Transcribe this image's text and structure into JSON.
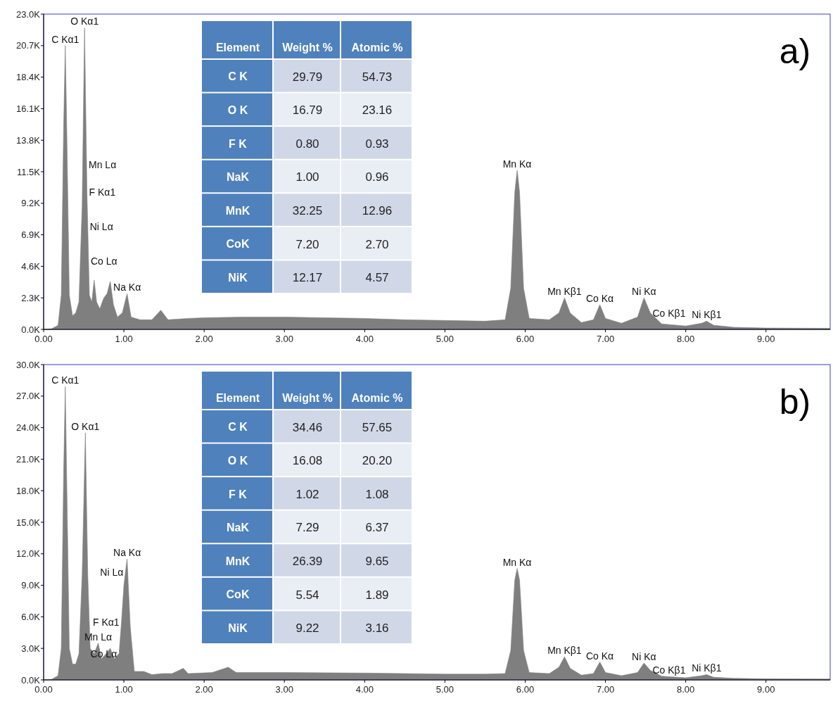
{
  "chart_data": [
    {
      "type": "area",
      "x": [
        0.0,
        0.1,
        0.18,
        0.22,
        0.25,
        0.27,
        0.29,
        0.32,
        0.36,
        0.4,
        0.44,
        0.48,
        0.51,
        0.54,
        0.57,
        0.6,
        0.63,
        0.66,
        0.7,
        0.75,
        0.79,
        0.83,
        0.87,
        0.92,
        0.98,
        1.04,
        1.09,
        1.2,
        1.35,
        1.46,
        1.55,
        1.8,
        2.0,
        2.5,
        3.0,
        3.5,
        4.0,
        4.5,
        5.0,
        5.5,
        5.75,
        5.82,
        5.87,
        5.9,
        5.93,
        5.98,
        6.05,
        6.3,
        6.42,
        6.49,
        6.56,
        6.7,
        6.85,
        6.93,
        7.0,
        7.2,
        7.4,
        7.48,
        7.56,
        7.7,
        8.0,
        8.2,
        8.26,
        8.35,
        8.6,
        9.0,
        9.8
      ],
      "series": [
        {
          "color": "#7f7f7f",
          "values": [
            0,
            50,
            300,
            2500,
            15000,
            20700,
            14000,
            2500,
            1000,
            1200,
            2000,
            9000,
            22000,
            10000,
            2500,
            2000,
            3600,
            2000,
            1500,
            2300,
            2600,
            3500,
            1800,
            900,
            1200,
            2600,
            900,
            700,
            700,
            1400,
            700,
            800,
            850,
            900,
            900,
            850,
            800,
            700,
            650,
            600,
            700,
            3000,
            10000,
            11600,
            10000,
            3000,
            800,
            700,
            1200,
            2300,
            1200,
            500,
            700,
            1800,
            800,
            450,
            900,
            2300,
            1200,
            400,
            250,
            450,
            600,
            300,
            150,
            100,
            80
          ]
        }
      ],
      "xlim": [
        0,
        9.8
      ],
      "ylim": [
        0,
        23000
      ],
      "xticks": [
        {
          "value": 0,
          "label": "0.00"
        },
        {
          "value": 1,
          "label": "1.00"
        },
        {
          "value": 2,
          "label": "2.00"
        },
        {
          "value": 3,
          "label": "3.00"
        },
        {
          "value": 4,
          "label": "4.00"
        },
        {
          "value": 5,
          "label": "5.00"
        },
        {
          "value": 6,
          "label": "6.00"
        },
        {
          "value": 7,
          "label": "7.00"
        },
        {
          "value": 8,
          "label": "8.00"
        },
        {
          "value": 9,
          "label": "9.00"
        }
      ],
      "yticks": [
        {
          "value": 0,
          "label": "0.0K"
        },
        {
          "value": 2300,
          "label": "2.3K"
        },
        {
          "value": 4600,
          "label": "4.6K"
        },
        {
          "value": 6900,
          "label": "6.9K"
        },
        {
          "value": 9200,
          "label": "9.2K"
        },
        {
          "value": 11500,
          "label": "11.5K"
        },
        {
          "value": 13800,
          "label": "13.8K"
        },
        {
          "value": 16100,
          "label": "16.1K"
        },
        {
          "value": 18400,
          "label": "18.4K"
        },
        {
          "value": 20700,
          "label": "20.7K"
        },
        {
          "value": 23000,
          "label": "23.0K"
        }
      ],
      "annotations": [
        "a)",
        {
          "text": "C Kα1",
          "x": 0.27,
          "y": 20700
        },
        {
          "text": "O Kα1",
          "x": 0.51,
          "y": 22000
        },
        {
          "text": "Mn Lα",
          "x": 0.535,
          "y": 12000
        },
        {
          "text": "F Kα1",
          "x": 0.54,
          "y": 10000
        },
        {
          "text": "Ni Lα",
          "x": 0.55,
          "y": 7500
        },
        {
          "text": "Co Lα",
          "x": 0.56,
          "y": 5000
        },
        {
          "text": "Na Kα",
          "x": 1.04,
          "y": 2600
        },
        {
          "text": "Mn Kα",
          "x": 5.9,
          "y": 11600
        },
        {
          "text": "Mn Kβ1",
          "x": 6.49,
          "y": 2300
        },
        {
          "text": "Co Kα",
          "x": 6.93,
          "y": 1800
        },
        {
          "text": "Ni Kα",
          "x": 7.48,
          "y": 2300
        },
        {
          "text": "Co Kβ1",
          "x": 7.56,
          "y": 1200
        },
        {
          "text": "Ni Kβ1",
          "x": 8.26,
          "y": 600
        }
      ]
    },
    {
      "type": "other",
      "categories": [
        "Element",
        "Weight %",
        "Atomic %"
      ],
      "y_categories": [
        "C K",
        "O K",
        "F K",
        "NaK",
        "MnK",
        "CoK",
        "NiK"
      ],
      "cell_labels": [
        [
          "29.79",
          "54.73"
        ],
        [
          "16.79",
          "23.16"
        ],
        [
          "0.80",
          "0.93"
        ],
        [
          "1.00",
          "0.96"
        ],
        [
          "32.25",
          "12.96"
        ],
        [
          "7.20",
          "2.70"
        ],
        [
          "12.17",
          "4.57"
        ]
      ]
    },
    {
      "type": "area",
      "x": [
        0.0,
        0.1,
        0.18,
        0.22,
        0.25,
        0.27,
        0.29,
        0.32,
        0.36,
        0.4,
        0.44,
        0.48,
        0.52,
        0.55,
        0.58,
        0.63,
        0.68,
        0.72,
        0.78,
        0.83,
        0.88,
        0.94,
        0.97,
        1.0,
        1.04,
        1.08,
        1.13,
        1.25,
        1.35,
        1.48,
        1.6,
        1.74,
        1.8,
        2.1,
        2.3,
        2.4,
        3.0,
        4.0,
        5.0,
        5.5,
        5.75,
        5.82,
        5.87,
        5.9,
        5.93,
        5.98,
        6.05,
        6.3,
        6.42,
        6.49,
        6.56,
        6.7,
        6.85,
        6.93,
        7.0,
        7.2,
        7.4,
        7.48,
        7.56,
        7.7,
        8.0,
        8.2,
        8.26,
        8.35,
        8.6,
        9.0,
        9.8
      ],
      "series": [
        {
          "color": "#7f7f7f",
          "values": [
            0,
            50,
            400,
            3000,
            20000,
            27900,
            18000,
            3000,
            1500,
            1500,
            2500,
            10000,
            23500,
            10000,
            3000,
            2500,
            3500,
            2000,
            2500,
            3000,
            2000,
            2500,
            5500,
            9000,
            11500,
            5000,
            800,
            800,
            500,
            600,
            600,
            1100,
            600,
            700,
            1200,
            700,
            700,
            650,
            550,
            550,
            600,
            2800,
            9500,
            10600,
            9500,
            2800,
            700,
            600,
            1200,
            2200,
            1100,
            450,
            600,
            1700,
            700,
            400,
            700,
            1600,
            900,
            350,
            200,
            400,
            500,
            250,
            150,
            100,
            80
          ]
        }
      ],
      "xlim": [
        0,
        9.8
      ],
      "ylim": [
        0,
        30000
      ],
      "xticks": [
        {
          "value": 0,
          "label": "0.00"
        },
        {
          "value": 1,
          "label": "1.00"
        },
        {
          "value": 2,
          "label": "2.00"
        },
        {
          "value": 3,
          "label": "3.00"
        },
        {
          "value": 4,
          "label": "4.00"
        },
        {
          "value": 5,
          "label": "5.00"
        },
        {
          "value": 6,
          "label": "6.00"
        },
        {
          "value": 7,
          "label": "7.00"
        },
        {
          "value": 8,
          "label": "8.00"
        },
        {
          "value": 9,
          "label": "9.00"
        }
      ],
      "yticks": [
        {
          "value": 0,
          "label": "0.0K"
        },
        {
          "value": 3000,
          "label": "3.0K"
        },
        {
          "value": 6000,
          "label": "6.0K"
        },
        {
          "value": 9000,
          "label": "9.0K"
        },
        {
          "value": 12000,
          "label": "12.0K"
        },
        {
          "value": 15000,
          "label": "15.0K"
        },
        {
          "value": 18000,
          "label": "18.0K"
        },
        {
          "value": 21000,
          "label": "21.0K"
        },
        {
          "value": 24000,
          "label": "24.0K"
        },
        {
          "value": 27000,
          "label": "27.0K"
        },
        {
          "value": 30000,
          "label": "30.0K"
        }
      ],
      "annotations": [
        "b)",
        {
          "text": "C Kα1",
          "x": 0.27,
          "y": 27900
        },
        {
          "text": "O Kα1",
          "x": 0.52,
          "y": 23500
        },
        {
          "text": "Na Kα",
          "x": 1.04,
          "y": 11500
        },
        {
          "text": "Ni Lα",
          "x": 1.02,
          "y": 10250
        },
        {
          "text": "F Kα1",
          "x": 0.97,
          "y": 5500
        },
        {
          "text": "Mn Lα",
          "x": 0.68,
          "y": 3500
        },
        {
          "text": "Co Lα",
          "x": 0.94,
          "y": 2500
        },
        {
          "text": "Mn Kα",
          "x": 5.9,
          "y": 10600
        },
        {
          "text": "Mn Kβ1",
          "x": 6.49,
          "y": 2200
        },
        {
          "text": "Co Kα",
          "x": 6.93,
          "y": 1700
        },
        {
          "text": "Ni Kα",
          "x": 7.48,
          "y": 1600
        },
        {
          "text": "Co Kβ1",
          "x": 7.56,
          "y": 900
        },
        {
          "text": "Ni Kβ1",
          "x": 8.26,
          "y": 500
        }
      ]
    },
    {
      "type": "other",
      "categories": [
        "Element",
        "Weight %",
        "Atomic %"
      ],
      "y_categories": [
        "C K",
        "O K",
        "F K",
        "NaK",
        "MnK",
        "CoK",
        "NiK"
      ],
      "cell_labels": [
        [
          "34.46",
          "57.65"
        ],
        [
          "16.08",
          "20.20"
        ],
        [
          "1.02",
          "1.08"
        ],
        [
          "7.29",
          "6.37"
        ],
        [
          "26.39",
          "9.65"
        ],
        [
          "5.54",
          "1.89"
        ],
        [
          "9.22",
          "3.16"
        ]
      ]
    }
  ]
}
